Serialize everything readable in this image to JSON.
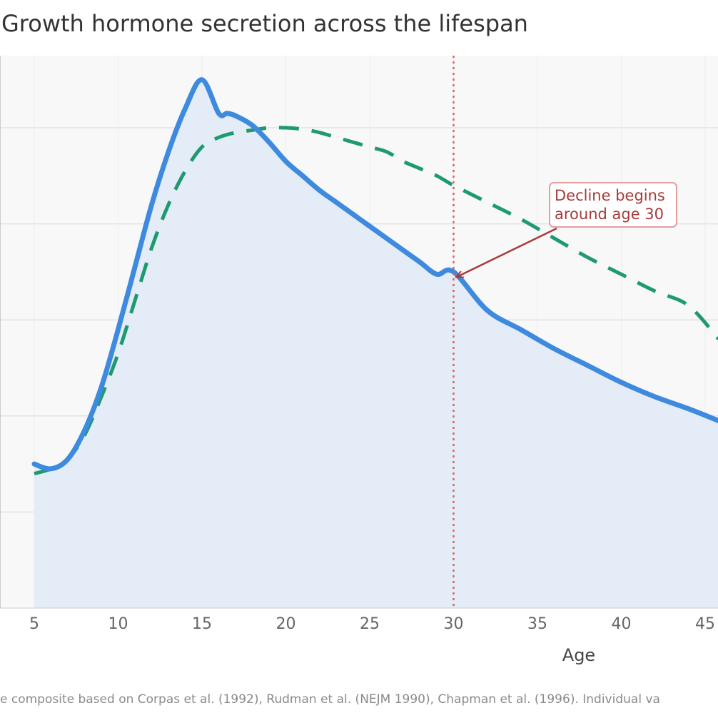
{
  "chart_data": {
    "type": "line",
    "title": "Growth hormone secretion across the lifespan",
    "xlabel": "Age",
    "ylabel": "",
    "xlim": [
      5,
      45.8
    ],
    "ylim": [
      0,
      120
    ],
    "x_ticks": [
      5,
      10,
      15,
      20,
      25,
      30,
      35,
      40,
      45
    ],
    "y_gridlines": [
      20,
      40,
      60,
      80,
      100
    ],
    "grid": true,
    "series": [
      {
        "name": "",
        "style": "solid",
        "color": "#3d8ade",
        "fill": "#e4edf7",
        "x": [
          5,
          6,
          7,
          8,
          9,
          10,
          11,
          12,
          13,
          14,
          15,
          16,
          16.5,
          17,
          18,
          19,
          20,
          21,
          22,
          23,
          24,
          25,
          26,
          27,
          28,
          29,
          30,
          32,
          34,
          36,
          38,
          40,
          42,
          44,
          45.8
        ],
        "y": [
          30,
          29,
          31,
          37,
          46,
          58,
          71,
          84,
          95,
          104,
          110,
          103,
          103,
          102.5,
          100.5,
          97,
          93,
          90,
          87,
          84.5,
          82,
          79.5,
          77,
          74.5,
          72,
          69.5,
          70,
          62,
          58,
          54,
          50.5,
          47,
          44,
          41.5,
          39
        ]
      },
      {
        "name": "",
        "style": "dashed",
        "color": "#1e9a70",
        "x": [
          5,
          6,
          7,
          8,
          9,
          10,
          11,
          12,
          13,
          14,
          15,
          16,
          17,
          18,
          19,
          20,
          21,
          22,
          23,
          24,
          25,
          26,
          27,
          28,
          29,
          30,
          32,
          34,
          36,
          38,
          40,
          42,
          44,
          45.8
        ],
        "y": [
          28,
          29,
          31,
          36,
          44,
          53,
          64,
          75,
          84,
          91,
          96,
          98,
          99,
          99.5,
          100,
          100,
          99.7,
          99,
          98,
          97,
          96,
          95,
          93,
          91.5,
          90,
          88,
          84.5,
          81,
          77,
          73,
          69.5,
          66,
          63,
          56
        ]
      }
    ],
    "annotations": [
      {
        "text_lines": [
          "Decline begins",
          "around age 30"
        ],
        "arrow_to": [
          30.2,
          70
        ],
        "box_at": [
          35.8,
          84.5
        ]
      }
    ],
    "reference_lines": [
      {
        "axis": "x",
        "value": 30,
        "color": "#e06060",
        "style": "dotted"
      }
    ],
    "source": "e composite based on Corpas et al. (1992), Rudman et al. (NEJM 1990), Chapman et al. (1996). Individual va"
  }
}
